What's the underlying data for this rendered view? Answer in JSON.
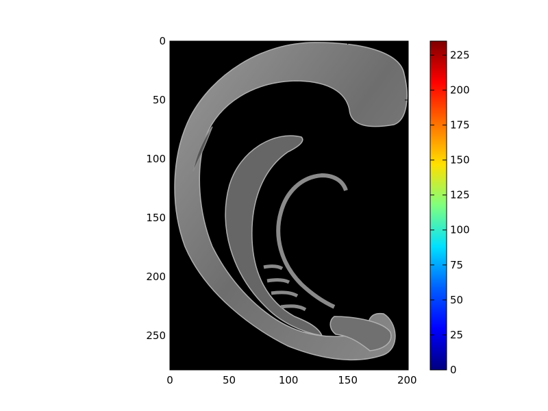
{
  "chart_data": {
    "type": "heatmap",
    "title": "",
    "xlabel": "",
    "ylabel": "",
    "image_extent": {
      "x": [
        0,
        201
      ],
      "y": [
        0,
        279
      ]
    },
    "xlim": [
      0,
      201
    ],
    "ylim": [
      279,
      0
    ],
    "x_ticks": [
      0,
      50,
      100,
      150,
      200
    ],
    "y_ticks": [
      0,
      50,
      100,
      150,
      200,
      250
    ],
    "background_color": "#000000",
    "object_color": "#7a7a7a",
    "object_description": "grayscale curved anatomical cross-section (C-shaped arcs with inner spiral and small lamellae)",
    "colorbar": {
      "colormap": "jet",
      "range": [
        0,
        235
      ],
      "ticks": [
        0,
        25,
        50,
        75,
        100,
        125,
        150,
        175,
        200,
        225
      ],
      "colors": [
        "#00007f",
        "#0000ff",
        "#007fff",
        "#00ffff",
        "#7fff7f",
        "#ffff00",
        "#ff7f00",
        "#ff0000",
        "#7f0000"
      ]
    }
  }
}
